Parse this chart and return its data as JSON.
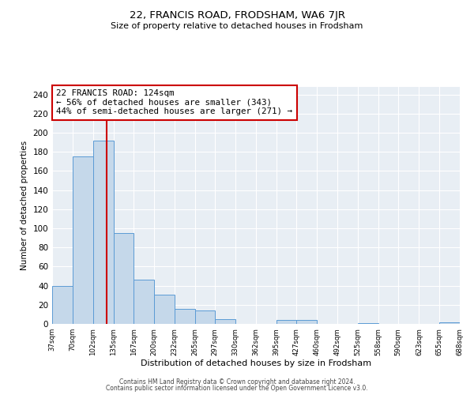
{
  "title": "22, FRANCIS ROAD, FRODSHAM, WA6 7JR",
  "subtitle": "Size of property relative to detached houses in Frodsham",
  "xlabel": "Distribution of detached houses by size in Frodsham",
  "ylabel": "Number of detached properties",
  "bar_left_edges": [
    37,
    70,
    102,
    135,
    167,
    200,
    232,
    265,
    297,
    330,
    362,
    395,
    427,
    460,
    492,
    525,
    558,
    590,
    623,
    655
  ],
  "bar_widths": [
    33,
    32,
    33,
    32,
    33,
    32,
    33,
    32,
    33,
    32,
    33,
    32,
    33,
    32,
    32,
    33,
    32,
    33,
    32,
    33
  ],
  "bar_heights": [
    40,
    175,
    192,
    95,
    46,
    31,
    16,
    14,
    5,
    0,
    0,
    4,
    4,
    0,
    0,
    1,
    0,
    0,
    0,
    2
  ],
  "bar_color": "#c5d8ea",
  "bar_edge_color": "#5b9bd5",
  "tick_labels": [
    "37sqm",
    "70sqm",
    "102sqm",
    "135sqm",
    "167sqm",
    "200sqm",
    "232sqm",
    "265sqm",
    "297sqm",
    "330sqm",
    "362sqm",
    "395sqm",
    "427sqm",
    "460sqm",
    "492sqm",
    "525sqm",
    "558sqm",
    "590sqm",
    "623sqm",
    "655sqm",
    "688sqm"
  ],
  "yticks": [
    0,
    20,
    40,
    60,
    80,
    100,
    120,
    140,
    160,
    180,
    200,
    220,
    240
  ],
  "ylim": [
    0,
    248
  ],
  "xlim_left": 37,
  "xlim_right": 688,
  "vline_x": 124,
  "vline_color": "#cc0000",
  "annotation_title": "22 FRANCIS ROAD: 124sqm",
  "annotation_line1": "← 56% of detached houses are smaller (343)",
  "annotation_line2": "44% of semi-detached houses are larger (271) →",
  "annotation_box_color": "#ffffff",
  "annotation_box_edge_color": "#cc0000",
  "background_color": "#e8eef4",
  "footer_line1": "Contains HM Land Registry data © Crown copyright and database right 2024.",
  "footer_line2": "Contains public sector information licensed under the Open Government Licence v3.0."
}
